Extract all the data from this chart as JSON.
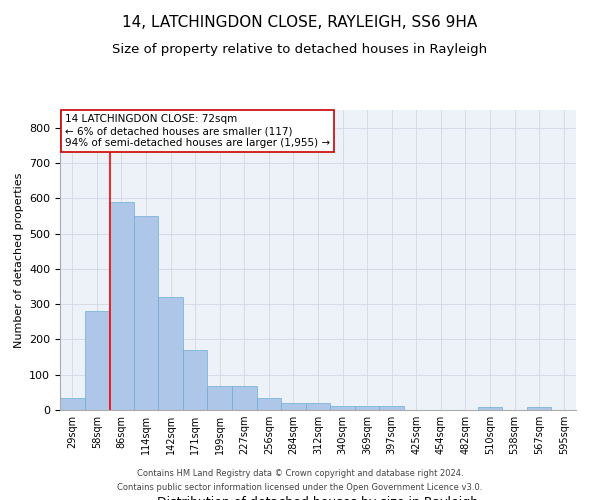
{
  "title": "14, LATCHINGDON CLOSE, RAYLEIGH, SS6 9HA",
  "subtitle": "Size of property relative to detached houses in Rayleigh",
  "xlabel": "Distribution of detached houses by size in Rayleigh",
  "ylabel": "Number of detached properties",
  "categories": [
    "29sqm",
    "58sqm",
    "86sqm",
    "114sqm",
    "142sqm",
    "171sqm",
    "199sqm",
    "227sqm",
    "256sqm",
    "284sqm",
    "312sqm",
    "340sqm",
    "369sqm",
    "397sqm",
    "425sqm",
    "454sqm",
    "482sqm",
    "510sqm",
    "538sqm",
    "567sqm",
    "595sqm"
  ],
  "bar_values": [
    33,
    280,
    590,
    550,
    320,
    170,
    67,
    67,
    33,
    20,
    20,
    12,
    10,
    10,
    0,
    0,
    0,
    8,
    0,
    8,
    0
  ],
  "bar_color": "#aec7e8",
  "bar_edgecolor": "#6baed6",
  "ylim": [
    0,
    850
  ],
  "yticks": [
    0,
    100,
    200,
    300,
    400,
    500,
    600,
    700,
    800
  ],
  "red_line_x": 1.55,
  "annotation_text": "14 LATCHINGDON CLOSE: 72sqm\n← 6% of detached houses are smaller (117)\n94% of semi-detached houses are larger (1,955) →",
  "annotation_box_color": "#ffffff",
  "annotation_box_edgecolor": "#cc0000",
  "footer_line1": "Contains HM Land Registry data © Crown copyright and database right 2024.",
  "footer_line2": "Contains public sector information licensed under the Open Government Licence v3.0.",
  "background_color": "#ffffff",
  "grid_color": "#d0d8e8",
  "title_fontsize": 11,
  "subtitle_fontsize": 9.5,
  "xlabel_fontsize": 9,
  "ylabel_fontsize": 8
}
